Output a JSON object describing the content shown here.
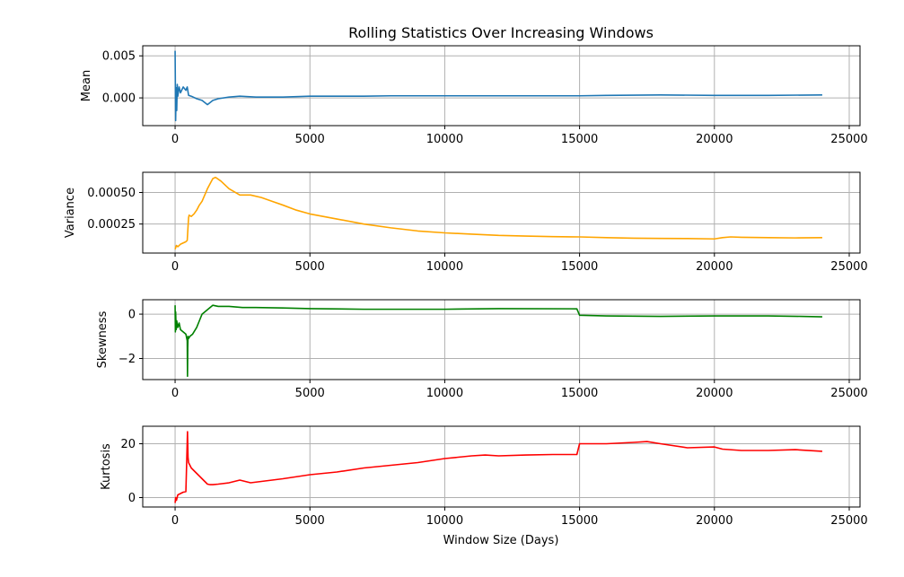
{
  "chart_data": {
    "type": "line",
    "title": "Rolling Statistics Over Increasing Windows",
    "xlabel": "Window Size (Days)",
    "xlim": [
      -1200,
      25400
    ],
    "xticks": [
      0,
      5000,
      10000,
      15000,
      20000,
      25000
    ],
    "xtick_labels": [
      "0",
      "5000",
      "10000",
      "15000",
      "20000",
      "25000"
    ],
    "grid": true,
    "panels": [
      {
        "ylabel": "Mean",
        "color": "#1f77b4",
        "ylim": [
          -0.0033,
          0.0062
        ],
        "yticks": [
          0.0,
          0.005
        ],
        "ytick_labels": [
          "0.000",
          "0.005"
        ],
        "x": [
          0,
          20,
          40,
          60,
          80,
          100,
          150,
          200,
          300,
          400,
          450,
          500,
          600,
          800,
          1000,
          1200,
          1400,
          1600,
          2000,
          2400,
          3000,
          3500,
          4000,
          5000,
          6000,
          7000,
          8000,
          10000,
          12000,
          14000,
          15000,
          16000,
          18000,
          20000,
          22000,
          24000
        ],
        "y": [
          0.0056,
          -0.0027,
          0.0012,
          -0.0015,
          0.0016,
          0.0002,
          0.0013,
          0.0006,
          0.0013,
          0.0009,
          0.0013,
          0.0003,
          0.0002,
          -0.0001,
          -0.0003,
          -0.0008,
          -0.0003,
          -0.0001,
          0.0001,
          0.0002,
          0.0001,
          0.0001,
          0.0001,
          0.0002,
          0.0002,
          0.0002,
          0.00025,
          0.00025,
          0.00025,
          0.00025,
          0.00025,
          0.0003,
          0.00035,
          0.0003,
          0.0003,
          0.00035
        ]
      },
      {
        "ylabel": "Variance",
        "color": "#ffa500",
        "ylim": [
          2e-05,
          0.00066
        ],
        "yticks": [
          0.00025,
          0.0005
        ],
        "ytick_labels": [
          "0.00025",
          "0.00050"
        ],
        "x": [
          0,
          50,
          100,
          200,
          300,
          400,
          450,
          500,
          520,
          600,
          700,
          800,
          900,
          1000,
          1100,
          1200,
          1300,
          1400,
          1500,
          1700,
          2000,
          2400,
          2800,
          3200,
          3600,
          4000,
          4500,
          5000,
          6000,
          7000,
          8000,
          9000,
          10000,
          11000,
          12000,
          13000,
          14000,
          15000,
          16000,
          17000,
          18000,
          19000,
          20000,
          20300,
          20600,
          21000,
          22000,
          23000,
          24000
        ],
        "y": [
          5e-05,
          8e-05,
          7e-05,
          9e-05,
          0.0001,
          0.00011,
          0.00012,
          0.0003,
          0.00032,
          0.00031,
          0.00033,
          0.00036,
          0.0004,
          0.00043,
          0.00048,
          0.00053,
          0.00057,
          0.00061,
          0.00062,
          0.00059,
          0.00053,
          0.00048,
          0.00048,
          0.00046,
          0.00043,
          0.0004,
          0.00036,
          0.00033,
          0.00029,
          0.00025,
          0.00022,
          0.000195,
          0.00018,
          0.00017,
          0.00016,
          0.000155,
          0.00015,
          0.000148,
          0.000142,
          0.000138,
          0.000136,
          0.000135,
          0.000132,
          0.000142,
          0.000148,
          0.000145,
          0.000142,
          0.00014,
          0.000142
        ]
      },
      {
        "ylabel": "Skewness",
        "color": "#008000",
        "ylim": [
          -2.95,
          0.65
        ],
        "yticks": [
          -2,
          0
        ],
        "ytick_labels": [
          "−2",
          "0"
        ],
        "x": [
          0,
          10,
          20,
          40,
          60,
          100,
          150,
          200,
          300,
          400,
          450,
          460,
          470,
          480,
          500,
          550,
          650,
          800,
          900,
          1000,
          1100,
          1200,
          1300,
          1400,
          1600,
          2000,
          2500,
          3000,
          4000,
          5000,
          7000,
          10000,
          12000,
          14900,
          15000,
          16000,
          18000,
          20000,
          22000,
          23200,
          24000
        ],
        "y": [
          0.4,
          -0.8,
          0.1,
          -0.7,
          -0.3,
          -0.6,
          -0.4,
          -0.7,
          -0.8,
          -0.9,
          -1.2,
          -2.8,
          -1.5,
          -1.0,
          -1.1,
          -1.0,
          -0.9,
          -0.6,
          -0.3,
          0.0,
          0.1,
          0.2,
          0.3,
          0.4,
          0.35,
          0.35,
          0.3,
          0.3,
          0.28,
          0.25,
          0.22,
          0.22,
          0.25,
          0.24,
          -0.05,
          -0.08,
          -0.1,
          -0.08,
          -0.08,
          -0.1,
          -0.12
        ]
      },
      {
        "ylabel": "Kurtosis",
        "color": "#ff0000",
        "ylim": [
          -3.5,
          26.5
        ],
        "yticks": [
          0,
          20
        ],
        "ytick_labels": [
          "0",
          "20"
        ],
        "x": [
          0,
          20,
          50,
          100,
          200,
          300,
          400,
          460,
          480,
          500,
          550,
          600,
          700,
          800,
          900,
          1000,
          1100,
          1200,
          1300,
          1400,
          1600,
          2000,
          2400,
          2800,
          3200,
          4000,
          5000,
          6000,
          7000,
          8000,
          9000,
          10000,
          11000,
          11500,
          12000,
          13000,
          14000,
          14900,
          15000,
          16000,
          17000,
          17500,
          18000,
          19000,
          20000,
          20300,
          21000,
          22000,
          23000,
          24000
        ],
        "y": [
          -2.0,
          0.0,
          -1.0,
          1.0,
          1.5,
          2.0,
          2.2,
          24.5,
          15.0,
          13.0,
          12.0,
          11.0,
          10.0,
          9.0,
          8.0,
          7.0,
          6.0,
          5.0,
          4.8,
          4.8,
          5.0,
          5.5,
          6.5,
          5.5,
          6.0,
          7.0,
          8.5,
          9.5,
          11.0,
          12.0,
          13.0,
          14.5,
          15.5,
          15.8,
          15.5,
          15.8,
          16.0,
          16.0,
          20.0,
          20.0,
          20.5,
          20.8,
          20.0,
          18.5,
          18.8,
          18.0,
          17.5,
          17.5,
          17.8,
          17.2
        ]
      }
    ]
  }
}
